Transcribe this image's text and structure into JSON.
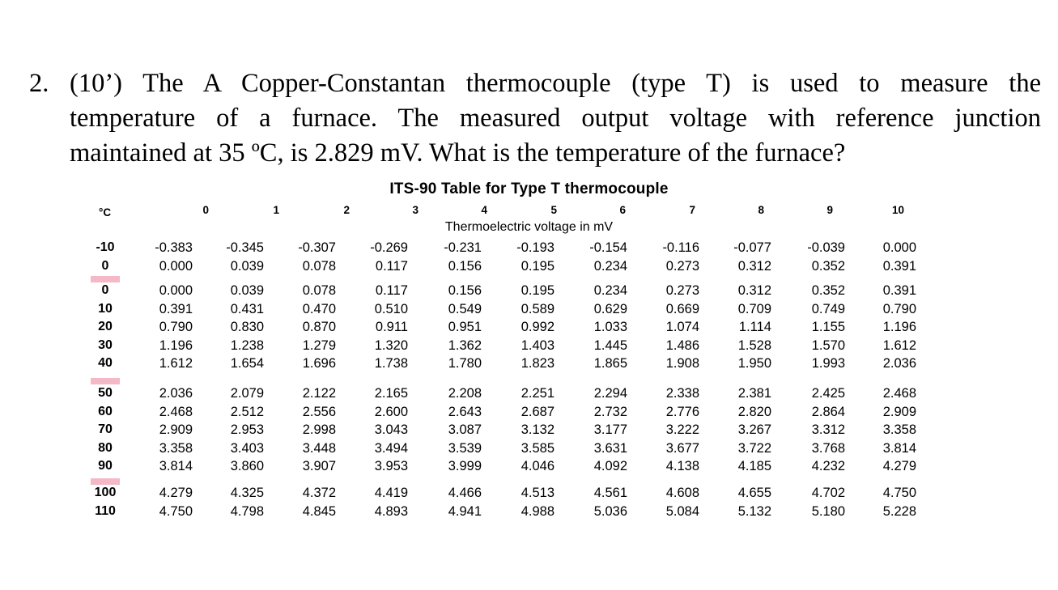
{
  "question": {
    "number": "2.",
    "line1": "(10’) The A Copper-Constantan thermocouple (type T) is used to measure the",
    "line2": "temperature of a furnace. The measured output voltage with reference junction",
    "line3": "maintained at 35 ºC, is 2.829 mV. What is the temperature of the furnace?"
  },
  "table": {
    "title": "ITS-90 Table for Type T thermocouple",
    "subtitle": "Thermoelectric voltage in mV",
    "degree_label": "°C",
    "columns": [
      "0",
      "1",
      "2",
      "3",
      "4",
      "5",
      "6",
      "7",
      "8",
      "9",
      "10"
    ],
    "groups": [
      [
        {
          "label": "-10",
          "values": [
            "-0.383",
            "-0.345",
            "-0.307",
            "-0.269",
            "-0.231",
            "-0.193",
            "-0.154",
            "-0.116",
            "-0.077",
            "-0.039",
            "0.000"
          ]
        },
        {
          "label": "0",
          "values": [
            "0.000",
            "0.039",
            "0.078",
            "0.117",
            "0.156",
            "0.195",
            "0.234",
            "0.273",
            "0.312",
            "0.352",
            "0.391"
          ]
        }
      ],
      [
        {
          "label": "0",
          "values": [
            "0.000",
            "0.039",
            "0.078",
            "0.117",
            "0.156",
            "0.195",
            "0.234",
            "0.273",
            "0.312",
            "0.352",
            "0.391"
          ]
        },
        {
          "label": "10",
          "values": [
            "0.391",
            "0.431",
            "0.470",
            "0.510",
            "0.549",
            "0.589",
            "0.629",
            "0.669",
            "0.709",
            "0.749",
            "0.790"
          ]
        },
        {
          "label": "20",
          "values": [
            "0.790",
            "0.830",
            "0.870",
            "0.911",
            "0.951",
            "0.992",
            "1.033",
            "1.074",
            "1.114",
            "1.155",
            "1.196"
          ]
        },
        {
          "label": "30",
          "values": [
            "1.196",
            "1.238",
            "1.279",
            "1.320",
            "1.362",
            "1.403",
            "1.445",
            "1.486",
            "1.528",
            "1.570",
            "1.612"
          ]
        },
        {
          "label": "40",
          "values": [
            "1.612",
            "1.654",
            "1.696",
            "1.738",
            "1.780",
            "1.823",
            "1.865",
            "1.908",
            "1.950",
            "1.993",
            "2.036"
          ]
        }
      ],
      [
        {
          "label": "50",
          "values": [
            "2.036",
            "2.079",
            "2.122",
            "2.165",
            "2.208",
            "2.251",
            "2.294",
            "2.338",
            "2.381",
            "2.425",
            "2.468"
          ]
        },
        {
          "label": "60",
          "values": [
            "2.468",
            "2.512",
            "2.556",
            "2.600",
            "2.643",
            "2.687",
            "2.732",
            "2.776",
            "2.820",
            "2.864",
            "2.909"
          ]
        },
        {
          "label": "70",
          "values": [
            "2.909",
            "2.953",
            "2.998",
            "3.043",
            "3.087",
            "3.132",
            "3.177",
            "3.222",
            "3.267",
            "3.312",
            "3.358"
          ]
        },
        {
          "label": "80",
          "values": [
            "3.358",
            "3.403",
            "3.448",
            "3.494",
            "3.539",
            "3.585",
            "3.631",
            "3.677",
            "3.722",
            "3.768",
            "3.814"
          ]
        },
        {
          "label": "90",
          "values": [
            "3.814",
            "3.860",
            "3.907",
            "3.953",
            "3.999",
            "4.046",
            "4.092",
            "4.138",
            "4.185",
            "4.232",
            "4.279"
          ]
        }
      ],
      [
        {
          "label": "100",
          "values": [
            "4.279",
            "4.325",
            "4.372",
            "4.419",
            "4.466",
            "4.513",
            "4.561",
            "4.608",
            "4.655",
            "4.702",
            "4.750"
          ]
        },
        {
          "label": "110",
          "values": [
            "4.750",
            "4.798",
            "4.845",
            "4.893",
            "4.941",
            "4.988",
            "5.036",
            "5.084",
            "5.132",
            "5.180",
            "5.228"
          ]
        }
      ]
    ],
    "separator_color": "#f4b8c6"
  }
}
